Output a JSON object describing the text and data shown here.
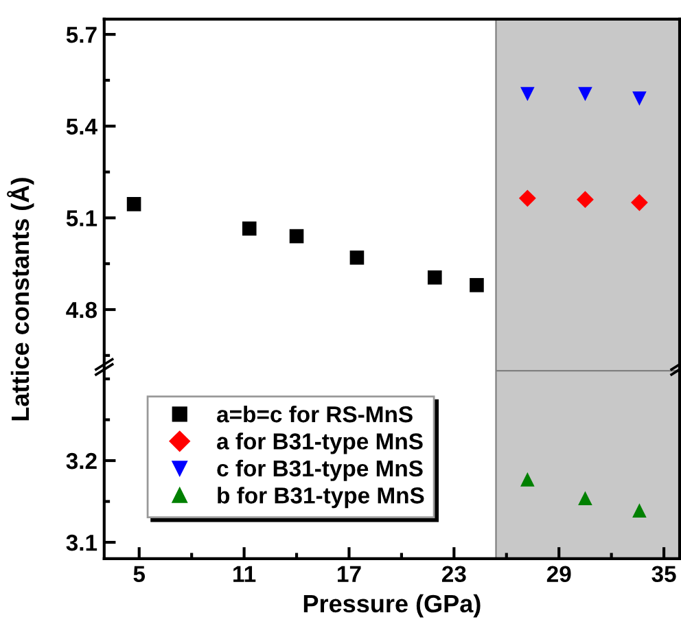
{
  "chart_data": [
    {
      "type": "scatter",
      "ylabel": "Lattice constants (Å)",
      "xlim": [
        3,
        35.9
      ],
      "ylim": [
        4.6,
        5.75
      ],
      "yticks": [
        4.8,
        5.1,
        5.4,
        5.7
      ],
      "tick_labels": "y",
      "grid": false,
      "legend": "bottom left",
      "bands": [
        {
          "axis": "x",
          "from": 25.4,
          "to": 35.9,
          "color": "#c8c8c8"
        }
      ],
      "series": [
        {
          "name": "a=b=c for RS-MnS",
          "color": "#000000",
          "marker": "square",
          "x": [
            4.7,
            11.3,
            14.0,
            17.45,
            21.9,
            24.3
          ],
          "values": [
            5.145,
            5.065,
            5.04,
            4.97,
            4.905,
            4.88
          ]
        },
        {
          "name": "a for B31-type MnS",
          "color": "#ff0000",
          "marker": "diamond",
          "x": [
            27.2,
            30.5,
            33.6
          ],
          "values": [
            5.164,
            5.16,
            5.15
          ]
        },
        {
          "name": "c for B31-type MnS",
          "color": "#0000ff",
          "marker": "triangle_down",
          "x": [
            27.2,
            30.5,
            33.6
          ],
          "values": [
            5.505,
            5.505,
            5.49
          ]
        }
      ]
    },
    {
      "type": "scatter",
      "xlabel": "Pressure (GPa)",
      "xlim": [
        3,
        35.9
      ],
      "xticks": [
        5,
        11,
        17,
        23,
        29,
        35
      ],
      "ylim": [
        3.08,
        3.31
      ],
      "yticks": [
        3.1,
        3.2
      ],
      "grid": false,
      "bands": [
        {
          "axis": "x",
          "from": 25.4,
          "to": 35.9,
          "color": "#c8c8c8"
        }
      ],
      "series": [
        {
          "name": "b for B31-type MnS",
          "color": "#008000",
          "marker": "triangle",
          "x": [
            27.2,
            30.5,
            33.6
          ],
          "values": [
            3.177,
            3.154,
            3.139
          ]
        }
      ]
    }
  ]
}
